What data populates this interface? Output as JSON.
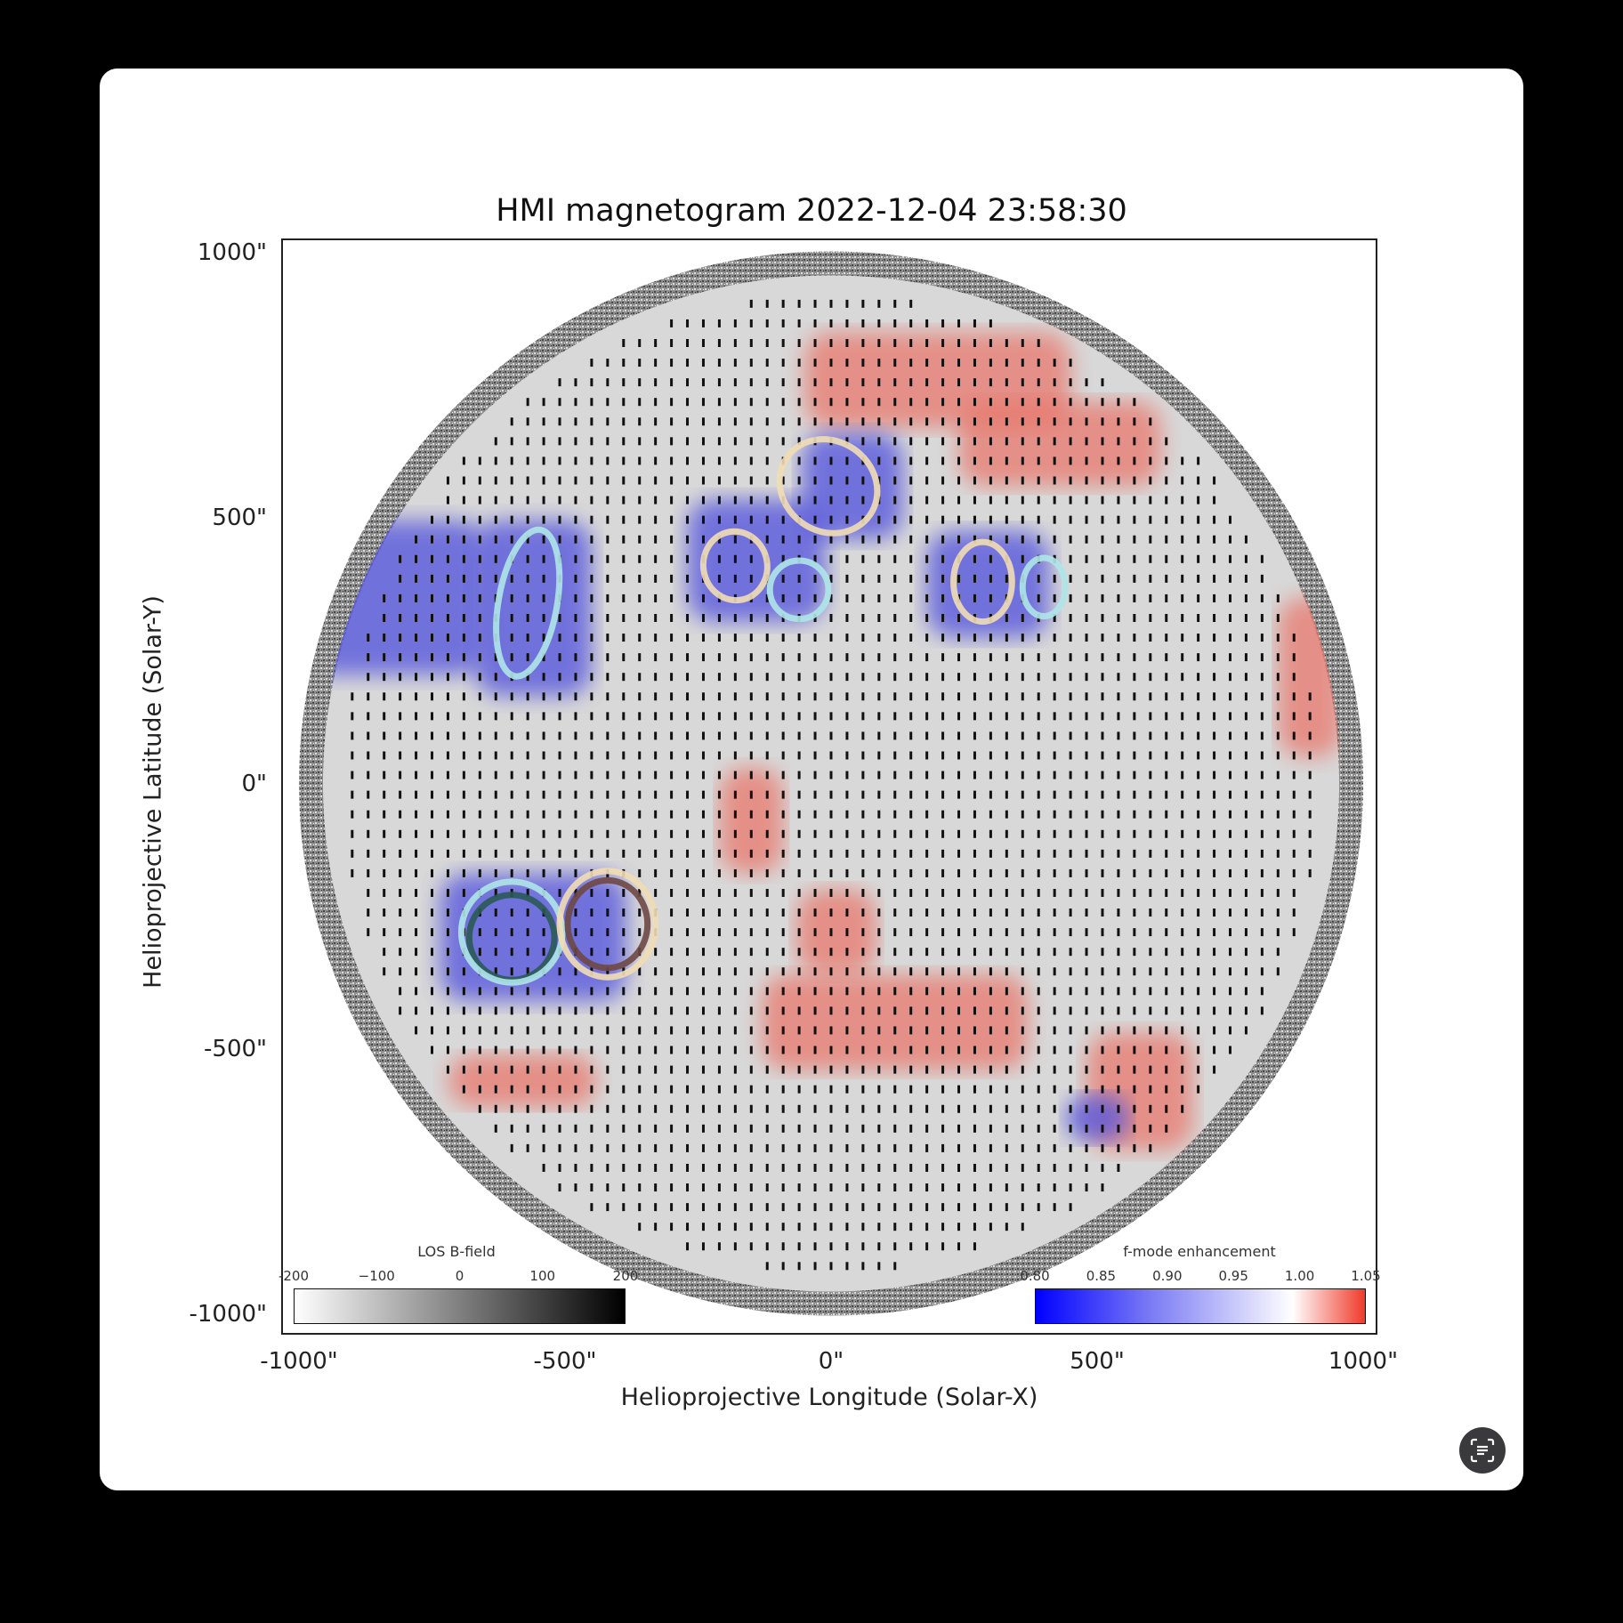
{
  "viewer": {
    "scan_text_button": {
      "icon": "text-scan-icon"
    }
  },
  "figure": {
    "title": "HMI magnetogram 2022-12-04 23:58:30",
    "xlabel": "Helioprojective Longitude (Solar-X)",
    "ylabel": "Helioprojective Latitude (Solar-Y)",
    "x_ticks": [
      "-1000\"",
      "-500\"",
      "0\"",
      "500\"",
      "1000\""
    ],
    "y_ticks": [
      "1000\"",
      "500\"",
      "0\"",
      "-500\"",
      "-1000\""
    ]
  },
  "colorbars": {
    "los": {
      "title": "LOS B-field",
      "ticks": [
        "-200",
        "−100",
        "0",
        "100",
        "200"
      ],
      "colors": [
        "#ffffff",
        "#000000"
      ]
    },
    "fmode": {
      "title": "f-mode enhancement",
      "ticks": [
        "0.80",
        "0.85",
        "0.90",
        "0.95",
        "1.00",
        "1.05"
      ],
      "colors": [
        "#0000ff",
        "#7b7bf5",
        "#ffffff",
        "#f03a2a"
      ]
    }
  },
  "chart_data": {
    "type": "heatmap",
    "title": "HMI magnetogram 2022-12-04 23:58:30",
    "xlabel": "Helioprojective Longitude (Solar-X)",
    "ylabel": "Helioprojective Latitude (Solar-Y)",
    "xlim": [
      -1000,
      1000
    ],
    "ylim": [
      -1000,
      1000
    ],
    "x_ticks": [
      -1000,
      -500,
      0,
      500,
      1000
    ],
    "y_ticks": [
      1000,
      500,
      0,
      -500,
      -1000
    ],
    "solar_radius_arcsec": 975,
    "background_colormap": {
      "name": "LOS B-field",
      "range": [
        -200,
        200
      ]
    },
    "overlay_colormap": {
      "name": "f-mode enhancement",
      "range": [
        0.8,
        1.05
      ]
    },
    "blue_regions": [
      {
        "x": -820,
        "y": 350,
        "w": 340,
        "h": 290
      },
      {
        "x": -560,
        "y": 330,
        "w": 220,
        "h": 330
      },
      {
        "x": -140,
        "y": 420,
        "w": 260,
        "h": 230
      },
      {
        "x": 295,
        "y": 375,
        "w": 230,
        "h": 200
      },
      {
        "x": -560,
        "y": -290,
        "w": 350,
        "h": 240
      },
      {
        "x": 40,
        "y": 560,
        "w": 190,
        "h": 200
      },
      {
        "x": 500,
        "y": -630,
        "w": 120,
        "h": 90
      }
    ],
    "red_regions": [
      {
        "x": 200,
        "y": 760,
        "w": 500,
        "h": 180
      },
      {
        "x": 430,
        "y": 640,
        "w": 380,
        "h": 160
      },
      {
        "x": 120,
        "y": -450,
        "w": 500,
        "h": 180
      },
      {
        "x": -150,
        "y": -70,
        "w": 120,
        "h": 200
      },
      {
        "x": 900,
        "y": 200,
        "w": 120,
        "h": 300
      },
      {
        "x": 580,
        "y": -580,
        "w": 200,
        "h": 220
      },
      {
        "x": -580,
        "y": -560,
        "w": 280,
        "h": 100
      },
      {
        "x": 10,
        "y": -280,
        "w": 150,
        "h": 160
      }
    ],
    "contours": [
      {
        "x": -570,
        "y": 340,
        "w": 110,
        "h": 280,
        "color": "#aee6e8",
        "rotate": 10
      },
      {
        "x": -180,
        "y": 410,
        "w": 120,
        "h": 130,
        "color": "#f1ddb5",
        "rotate": -10
      },
      {
        "x": -60,
        "y": 365,
        "w": 110,
        "h": 110,
        "color": "#aee6e8",
        "rotate": 0
      },
      {
        "x": 285,
        "y": 380,
        "w": 110,
        "h": 150,
        "color": "#f1ddb5",
        "rotate": 0
      },
      {
        "x": 400,
        "y": 370,
        "w": 80,
        "h": 110,
        "color": "#aee6e8",
        "rotate": 0
      },
      {
        "x": -5,
        "y": 560,
        "w": 190,
        "h": 170,
        "color": "#f1ddb5",
        "rotate": 35
      },
      {
        "x": -600,
        "y": -290,
        "w": 160,
        "h": 160,
        "color": "#2a5a57",
        "rotate": 0
      },
      {
        "x": -600,
        "y": -280,
        "w": 190,
        "h": 190,
        "color": "#aee6e8",
        "rotate": 0
      },
      {
        "x": -420,
        "y": -265,
        "w": 150,
        "h": 165,
        "color": "#6e4844",
        "rotate": 0
      },
      {
        "x": -420,
        "y": -265,
        "w": 180,
        "h": 200,
        "color": "#f1ddb5",
        "rotate": 0
      }
    ]
  }
}
